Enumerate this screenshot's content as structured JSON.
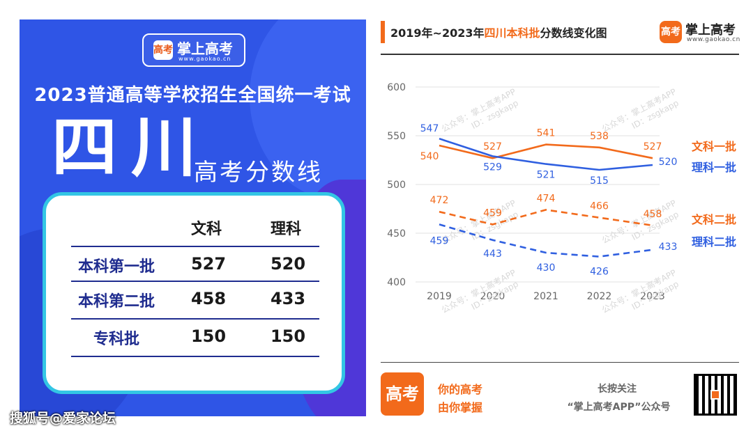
{
  "poster": {
    "brand_logo_text": "高考",
    "brand_name": "掌上高考",
    "brand_url": "www.gaokao.cn",
    "exam_title": "2023普通高等学校招生全国统一考试",
    "province": "四川",
    "subtitle": "高考分数线",
    "table": {
      "headers": [
        "文科",
        "理科"
      ],
      "rows": [
        {
          "label": "本科第一批",
          "wenke": "527",
          "like": "520"
        },
        {
          "label": "本科第二批",
          "wenke": "458",
          "like": "433"
        },
        {
          "label": "专科批",
          "wenke": "150",
          "like": "150"
        }
      ]
    },
    "footer_watermark": "搜狐号@爱家论坛"
  },
  "header": {
    "title_prefix": "2019年~2023年",
    "title_highlight": "四川本科批",
    "title_suffix": "分数线变化图",
    "logo_text": "高考",
    "brand": "掌上高考",
    "url": "www.gaokao.cn"
  },
  "footer": {
    "logo_text": "高考",
    "slogan_line1": "你的高考",
    "slogan_line2": "由你掌握",
    "follow_line1": "长按关注",
    "follow_line2": "“掌上高考APP”公众号"
  },
  "colors": {
    "orange": "#f26a1b",
    "blue": "#2f5fe0",
    "poster_bg": "#2f55e6",
    "card_border": "#33c6e4"
  },
  "chart_data": {
    "type": "line",
    "x": [
      "2019",
      "2020",
      "2021",
      "2022",
      "2023"
    ],
    "ylim": [
      400,
      600
    ],
    "yticks": [
      400,
      450,
      500,
      550,
      600
    ],
    "grid": true,
    "series": [
      {
        "name": "文科一批",
        "values": [
          540,
          527,
          541,
          538,
          527
        ],
        "color": "#f26a1b",
        "dashed": false
      },
      {
        "name": "理科一批",
        "values": [
          547,
          529,
          521,
          515,
          520
        ],
        "color": "#2f5fe0",
        "dashed": false
      },
      {
        "name": "文科二批",
        "values": [
          472,
          459,
          474,
          466,
          458
        ],
        "color": "#f26a1b",
        "dashed": true
      },
      {
        "name": "理科二批",
        "values": [
          459,
          443,
          430,
          426,
          433
        ],
        "color": "#2f5fe0",
        "dashed": true
      }
    ],
    "watermark_line1": "公众号：掌上高考APP",
    "watermark_line2": "ID：zsgkapp"
  }
}
